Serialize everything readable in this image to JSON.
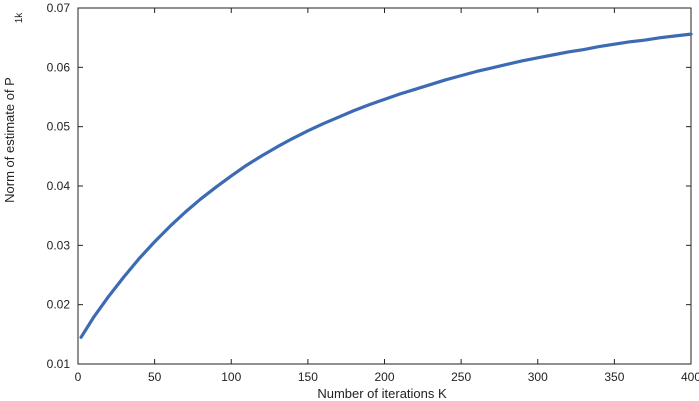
{
  "chart_data": {
    "type": "line",
    "xlabel": "Number of iterations K",
    "ylabel": "Norm of estimate of P",
    "ylabel_subscript": "1k",
    "xlim": [
      0,
      400
    ],
    "ylim": [
      0.01,
      0.07
    ],
    "grid": false,
    "x_ticks": [
      "0",
      "50",
      "100",
      "150",
      "200",
      "250",
      "300",
      "350",
      "400"
    ],
    "y_ticks": [
      "0.01",
      "0.02",
      "0.03",
      "0.04",
      "0.05",
      "0.06",
      "0.07"
    ],
    "series": [
      {
        "color": "#3d6bb3",
        "x": [
          2,
          10,
          20,
          30,
          40,
          50,
          60,
          70,
          80,
          90,
          100,
          110,
          120,
          130,
          140,
          150,
          160,
          170,
          180,
          190,
          200,
          210,
          220,
          230,
          240,
          250,
          260,
          270,
          280,
          290,
          300,
          310,
          320,
          330,
          340,
          350,
          360,
          370,
          380,
          390,
          400
        ],
        "y": [
          0.0145,
          0.0178,
          0.0214,
          0.0247,
          0.0278,
          0.0306,
          0.0332,
          0.0356,
          0.0378,
          0.0398,
          0.0417,
          0.0435,
          0.0451,
          0.0466,
          0.048,
          0.0493,
          0.0505,
          0.0516,
          0.0527,
          0.0537,
          0.0546,
          0.0555,
          0.0563,
          0.0571,
          0.0579,
          0.0586,
          0.0593,
          0.0599,
          0.0605,
          0.0611,
          0.0616,
          0.0621,
          0.0626,
          0.063,
          0.0635,
          0.0639,
          0.0643,
          0.0646,
          0.065,
          0.0653,
          0.0656
        ]
      }
    ]
  }
}
